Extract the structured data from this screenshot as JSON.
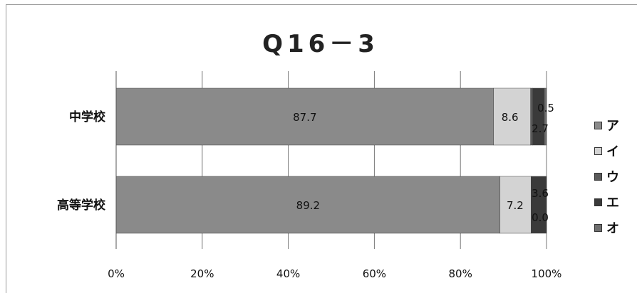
{
  "chart_data": {
    "type": "bar",
    "orientation": "horizontal",
    "stacked": true,
    "percent": true,
    "title": "Q16－3",
    "categories": [
      "中学校",
      "高等学校"
    ],
    "series": [
      {
        "name": "ア",
        "values": [
          87.7,
          89.2
        ],
        "color": "#8a8a8a"
      },
      {
        "name": "イ",
        "values": [
          8.6,
          7.2
        ],
        "color": "#d3d3d3"
      },
      {
        "name": "ウ",
        "values": [
          0.5,
          0.0
        ],
        "color": "#5a5a5a"
      },
      {
        "name": "エ",
        "values": [
          2.7,
          3.6
        ],
        "color": "#3a3a3a"
      },
      {
        "name": "オ",
        "values": [
          0.5,
          0.0
        ],
        "color": "#6e6e6e"
      }
    ],
    "data_labels": [
      [
        "87.7",
        "8.6",
        "0.5",
        "2.7"
      ],
      [
        "89.2",
        "7.2",
        "0.0",
        "3.6"
      ]
    ],
    "x_ticks": [
      "0%",
      "20%",
      "40%",
      "60%",
      "80%",
      "100%"
    ],
    "xlim": [
      0,
      100
    ],
    "grid": true,
    "legend_position": "right"
  }
}
